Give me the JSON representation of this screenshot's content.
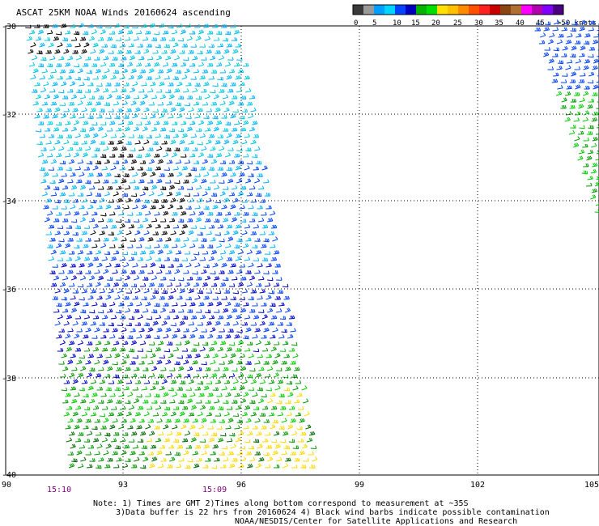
{
  "title": "ASCAT 25KM NOAA Winds 20160624 ascending",
  "colorbar": {
    "colors": [
      "#3a3a3a",
      "#9a9a9a",
      "#00a0ff",
      "#00d4ff",
      "#0044ff",
      "#0000c0",
      "#00b400",
      "#00e000",
      "#ffe000",
      "#ffc000",
      "#ff8c00",
      "#ff5000",
      "#ff2020",
      "#c80000",
      "#8b4513",
      "#b07030",
      "#ff00ff",
      "#b000b0",
      "#8000ff",
      "#4b0082"
    ],
    "tick_labels": [
      "0",
      "5",
      "10",
      "15",
      "20",
      "25",
      "30",
      "35",
      "40",
      "45",
      ">50 knots"
    ]
  },
  "axes": {
    "lat_labels": [
      "-30",
      "-32",
      "-34",
      "-36",
      "-38",
      "-40"
    ],
    "lon_labels": [
      "90",
      "93",
      "96",
      "99",
      "102",
      "105"
    ]
  },
  "swath_times": [
    "15:10",
    "15:09"
  ],
  "notes": [
    "Note: 1) Times are GMT 2)Times along bottom correspond to measurement at ~35S",
    "3)Data buffer is 22 hrs from 20160624 4) Black wind barbs indicate possible contamination",
    "NOAA/NESDIS/Center for Satellite Applications and Research"
  ],
  "colors": {
    "grid": "#000000",
    "time_label": "#800080",
    "speed_ramp": [
      "#000000",
      "#00c8e0",
      "#00b4ff",
      "#0040ff",
      "#0000c8",
      "#009900",
      "#00cc00",
      "#006600",
      "#ffd800"
    ]
  },
  "wind_barbs_icon": "wind-barb-icon"
}
